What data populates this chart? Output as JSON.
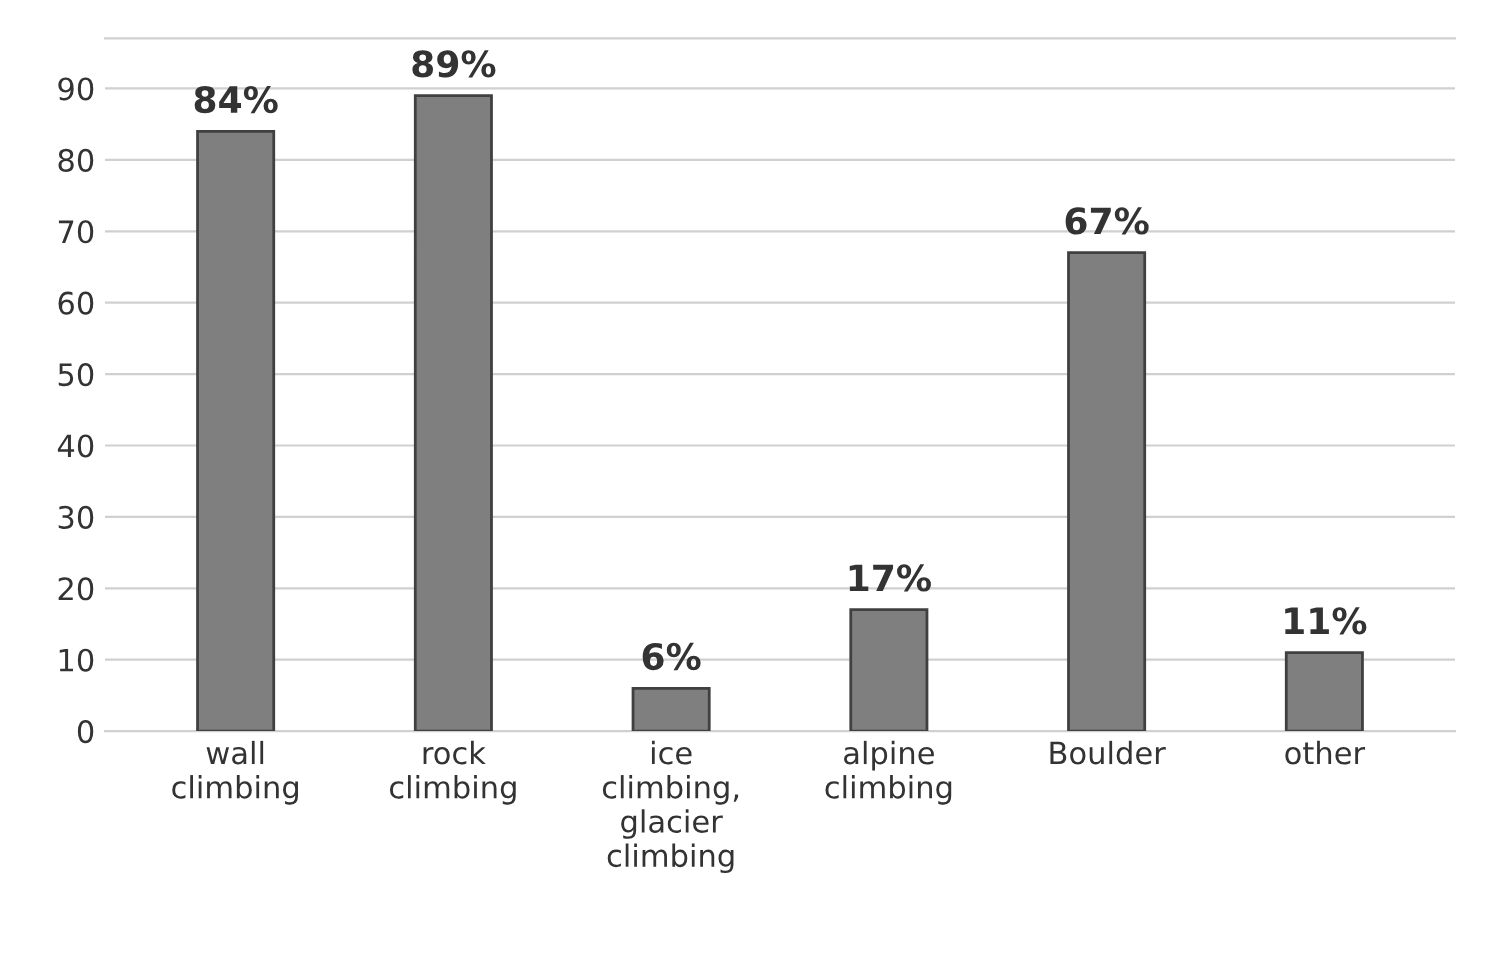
{
  "chart_data": {
    "type": "bar",
    "categories": [
      "wall\nclimbing",
      "rock\nclimbing",
      "ice\nclimbing,\nglacier\nclimbing",
      "alpine\nclimbing",
      "Boulder",
      "other"
    ],
    "values": [
      84,
      89,
      6,
      17,
      67,
      11
    ],
    "value_labels": [
      "84%",
      "89%",
      "6%",
      "17%",
      "67%",
      "11%"
    ],
    "color": "#7f7f7f",
    "ylim": [
      0,
      97
    ],
    "yticks": [
      0,
      10,
      20,
      30,
      40,
      50,
      60,
      70,
      80,
      90
    ],
    "grid": "y",
    "legend": false
  }
}
